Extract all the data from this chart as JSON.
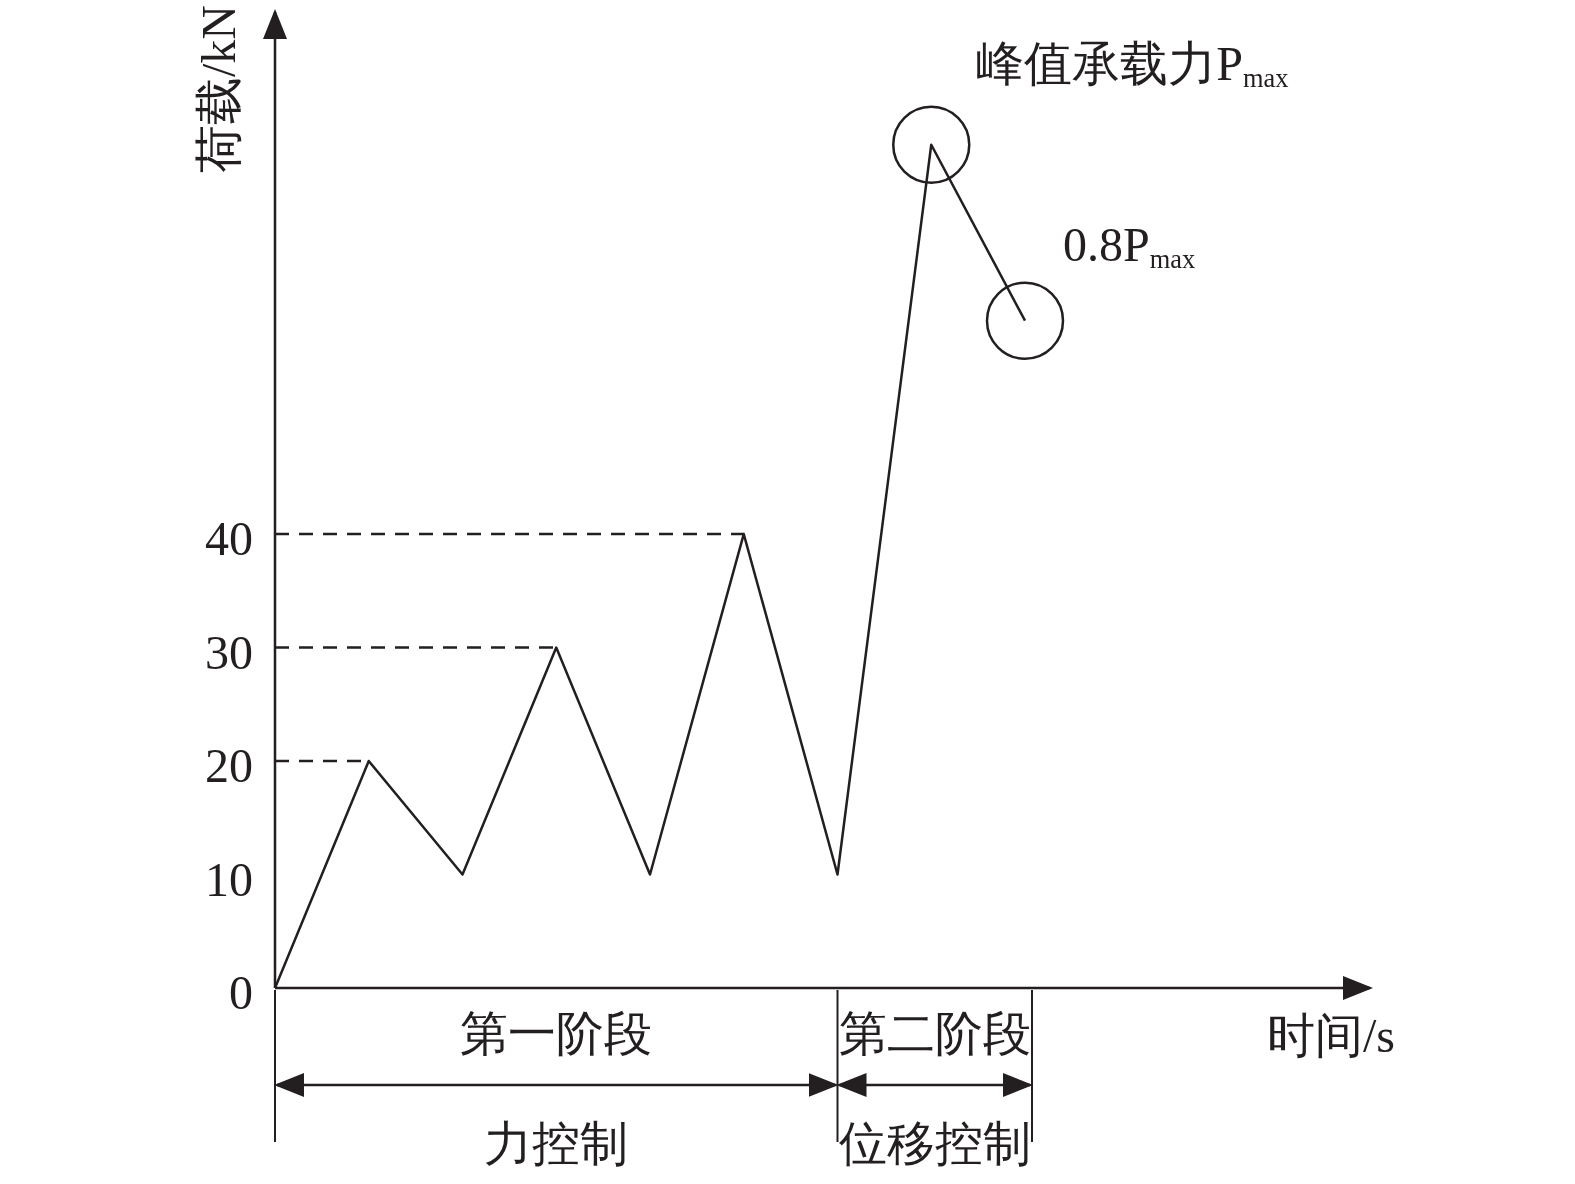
{
  "chart_data": {
    "type": "line",
    "xlabel": "时间/s",
    "ylabel": "荷载/kN",
    "ylim": [
      0,
      86
    ],
    "yticks": [
      0,
      10,
      20,
      30,
      40
    ],
    "tick_labels": "y",
    "categories": [
      null,
      null,
      null,
      null,
      null,
      null,
      null,
      null,
      null
    ],
    "series": [
      {
        "color": "#231f20",
        "line_style": "solid",
        "values": [
          0,
          20,
          10,
          30,
          10,
          40,
          10,
          74.3,
          58.8
        ]
      },
      {
        "color": "#231f20",
        "line_style": "dashed",
        "values": [
          20,
          20,
          null,
          null,
          null,
          null,
          null,
          null,
          null
        ]
      },
      {
        "color": "#231f20",
        "line_style": "dashed",
        "values": [
          30,
          30,
          30,
          30,
          null,
          null,
          null,
          null,
          null
        ]
      },
      {
        "color": "#231f20",
        "line_style": "dashed",
        "values": [
          40,
          40,
          40,
          40,
          40,
          40,
          null,
          null,
          null
        ]
      }
    ],
    "annotations": [
      "峰值承载力P$_{max}$",
      "0.8P$_{max}$",
      "第一阶段",
      "力控制",
      "第二阶段",
      "位移控制"
    ]
  }
}
